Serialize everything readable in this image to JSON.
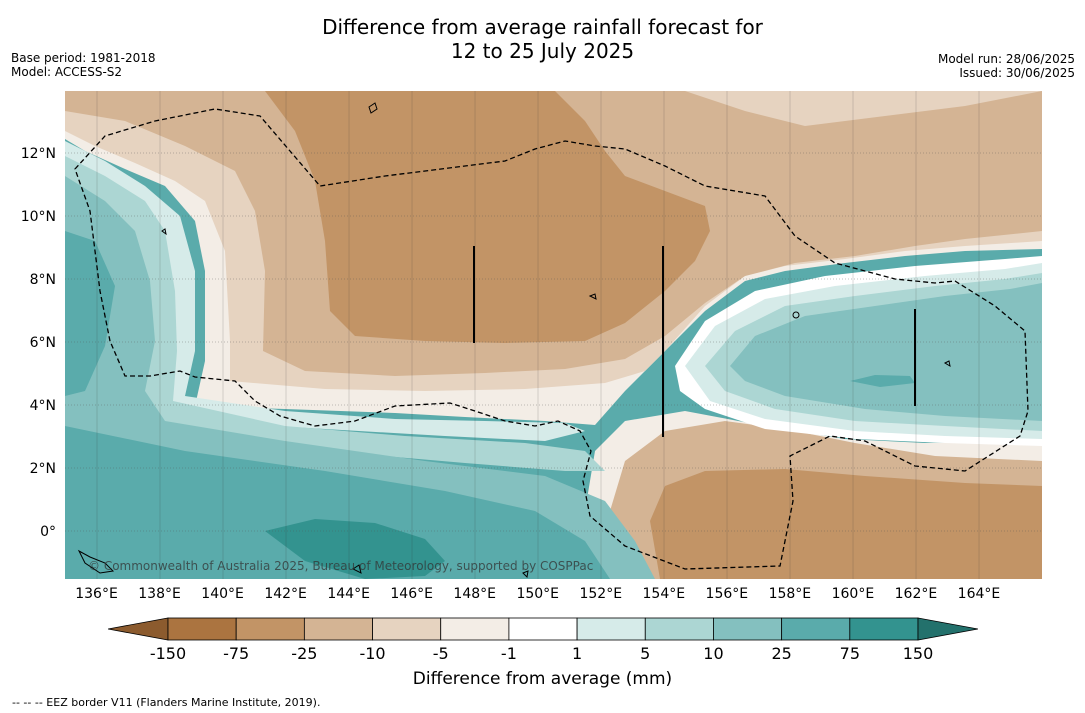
{
  "title_line1": "Difference from average rainfall forecast for",
  "title_line2": "12 to 25 July 2025",
  "left_meta": {
    "base_period": "Base period: 1981-2018",
    "model": "Model: ACCESS-S2"
  },
  "right_meta": {
    "model_run": "Model run: 28/06/2025",
    "issued": "Issued: 30/06/2025"
  },
  "map": {
    "lon_range": [
      135,
      166
    ],
    "lat_range": [
      -1.5,
      14
    ],
    "x_ticks": [
      "136°E",
      "138°E",
      "140°E",
      "142°E",
      "144°E",
      "146°E",
      "148°E",
      "150°E",
      "152°E",
      "154°E",
      "156°E",
      "158°E",
      "160°E",
      "162°E",
      "164°E"
    ],
    "y_ticks": [
      "12°N",
      "10°N",
      "8°N",
      "6°N",
      "4°N",
      "2°N",
      "0°"
    ],
    "copyright": "© Commonwealth of Australia 2025, Bureau of Meteorology, supported by COSPPac"
  },
  "colorbar": {
    "ticks": [
      "-150",
      "-75",
      "-25",
      "-10",
      "-5",
      "-1",
      "1",
      "5",
      "10",
      "25",
      "75",
      "150"
    ],
    "label": "Difference from average (mm)",
    "colors": [
      "#8c5b2e",
      "#ab7440",
      "#c29466",
      "#d4b494",
      "#e6d3c0",
      "#f3ede6",
      "#ffffff",
      "#d6ebe9",
      "#acd6d3",
      "#84c0bf",
      "#5aabab",
      "#33938f",
      "#23716c"
    ]
  },
  "footer": "-- -- -- EEZ border V11 (Flanders Marine Institute, 2019)."
}
